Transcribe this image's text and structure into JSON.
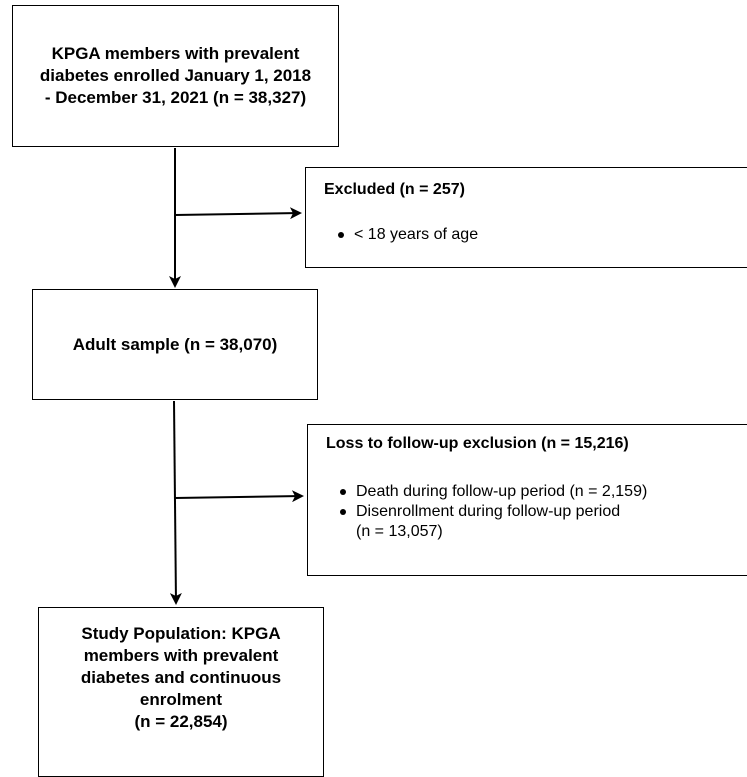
{
  "boxes": {
    "enrolled": {
      "text": "KPGA members with prevalent diabetes enrolled January 1, 2018 - December 31, 2021 (n = 38,327)"
    },
    "excluded": {
      "title": "Excluded (n = 257)",
      "bullets": [
        "< 18 years of age"
      ]
    },
    "adult_sample": {
      "text": "Adult sample (n = 38,070)"
    },
    "loss_followup": {
      "title": "Loss to follow-up exclusion (n = 15,216)",
      "bullets": [
        "Death during follow-up period (n = 2,159)",
        "Disenrollment during follow-up period"
      ],
      "bullet_2_cont": "(n = 13,057)"
    },
    "study_population": {
      "line1": "Study Population: KPGA members with prevalent diabetes and continuous enrolment",
      "line2": "(n = 22,854)"
    }
  },
  "colors": {
    "stroke": "#000000",
    "background": "#ffffff"
  }
}
